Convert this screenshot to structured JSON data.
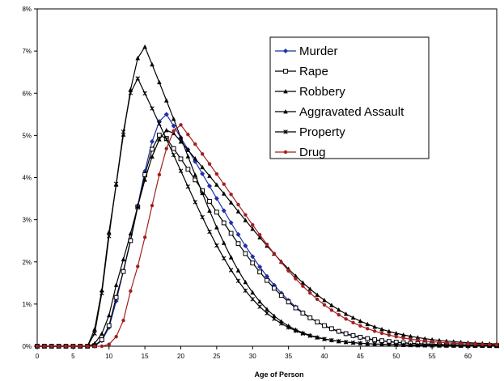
{
  "chart_data": {
    "type": "line",
    "title": "",
    "xlabel": "Age of Person",
    "ylabel": "",
    "xlim": [
      0,
      64
    ],
    "ylim": [
      0,
      8
    ],
    "x_ticks": [
      "0",
      "5",
      "10",
      "15",
      "20",
      "25",
      "30",
      "35",
      "40",
      "45",
      "50",
      "55",
      "60"
    ],
    "y_ticks": [
      "0%",
      "1%",
      "2%",
      "3%",
      "4%",
      "5%",
      "6%",
      "7%",
      "8%"
    ],
    "grid": false,
    "legend_position": "top-right",
    "series": [
      {
        "name": "Murder",
        "color": "#1f2fa8",
        "marker": "diamond",
        "curve": {
          "start": 8.0,
          "mode": 18.0,
          "peak": 5.5,
          "rise": 4.0,
          "tail": 10.0
        },
        "points": [
          [
            10,
            0.65
          ],
          [
            12,
            2.0
          ],
          [
            14,
            3.7
          ],
          [
            16,
            5.0
          ],
          [
            18,
            5.5
          ],
          [
            20,
            5.2
          ],
          [
            25,
            3.7
          ],
          [
            30,
            2.4
          ],
          [
            35,
            1.5
          ],
          [
            40,
            0.9
          ],
          [
            45,
            0.5
          ],
          [
            50,
            0.3
          ],
          [
            55,
            0.17
          ],
          [
            60,
            0.1
          ]
        ]
      },
      {
        "name": "Rape",
        "color": "#000000",
        "marker": "square-open",
        "curve": {
          "start": 7.8,
          "mode": 17.5,
          "peak": 5.05,
          "rise": 3.8,
          "tail": 10.5
        },
        "points": [
          [
            10,
            0.8
          ],
          [
            12,
            2.3
          ],
          [
            14,
            4.1
          ],
          [
            16,
            4.9
          ],
          [
            17.5,
            5.05
          ],
          [
            20,
            4.7
          ],
          [
            25,
            3.4
          ],
          [
            30,
            2.2
          ],
          [
            35,
            1.4
          ],
          [
            40,
            0.85
          ],
          [
            45,
            0.5
          ],
          [
            50,
            0.3
          ],
          [
            55,
            0.18
          ],
          [
            60,
            0.1
          ]
        ]
      },
      {
        "name": "Robbery",
        "color": "#000000",
        "marker": "triangle",
        "curve": {
          "start": 7.0,
          "mode": 15.0,
          "peak": 7.1,
          "rise": 3.6,
          "tail": 8.5
        },
        "points": [
          [
            9,
            0.6
          ],
          [
            11,
            3.2
          ],
          [
            13,
            5.9
          ],
          [
            15,
            7.1
          ],
          [
            17,
            6.6
          ],
          [
            20,
            5.1
          ],
          [
            25,
            3.0
          ],
          [
            30,
            1.7
          ],
          [
            35,
            0.95
          ],
          [
            40,
            0.5
          ],
          [
            45,
            0.27
          ],
          [
            50,
            0.15
          ],
          [
            55,
            0.08
          ],
          [
            60,
            0.04
          ]
        ]
      },
      {
        "name": "Aggravated Assault",
        "color": "#000000",
        "marker": "triangle",
        "curve": {
          "start": 7.5,
          "mode": 18.5,
          "peak": 5.15,
          "rise": 4.8,
          "tail": 13.0
        },
        "points": [
          [
            10,
            0.7
          ],
          [
            12,
            2.1
          ],
          [
            14,
            3.7
          ],
          [
            16,
            4.7
          ],
          [
            18.5,
            5.15
          ],
          [
            20,
            5.0
          ],
          [
            25,
            3.9
          ],
          [
            30,
            2.7
          ],
          [
            35,
            1.8
          ],
          [
            40,
            1.1
          ],
          [
            45,
            0.65
          ],
          [
            50,
            0.38
          ],
          [
            55,
            0.22
          ],
          [
            60,
            0.13
          ]
        ]
      },
      {
        "name": "Property",
        "color": "#000000",
        "marker": "x",
        "curve": {
          "start": 7.2,
          "mode": 14.0,
          "peak": 6.35,
          "rise": 3.0,
          "tail": 9.0
        },
        "points": [
          [
            9,
            1.1
          ],
          [
            11,
            4.0
          ],
          [
            13,
            6.1
          ],
          [
            14,
            6.35
          ],
          [
            16,
            5.6
          ],
          [
            20,
            3.8
          ],
          [
            25,
            2.2
          ],
          [
            30,
            1.3
          ],
          [
            35,
            0.75
          ],
          [
            40,
            0.43
          ],
          [
            45,
            0.25
          ],
          [
            50,
            0.14
          ],
          [
            55,
            0.08
          ],
          [
            60,
            0.05
          ]
        ]
      },
      {
        "name": "Drug",
        "color": "#a31f1f",
        "marker": "circle",
        "curve": {
          "start": 9.5,
          "mode": 20.0,
          "peak": 5.25,
          "rise": 4.2,
          "tail": 11.5
        },
        "points": [
          [
            11,
            0.3
          ],
          [
            13,
            1.1
          ],
          [
            15,
            2.7
          ],
          [
            17,
            4.2
          ],
          [
            19,
            5.1
          ],
          [
            20,
            5.25
          ],
          [
            25,
            4.3
          ],
          [
            30,
            2.9
          ],
          [
            35,
            1.85
          ],
          [
            40,
            1.1
          ],
          [
            45,
            0.6
          ],
          [
            50,
            0.33
          ],
          [
            55,
            0.18
          ],
          [
            60,
            0.1
          ]
        ]
      }
    ]
  }
}
